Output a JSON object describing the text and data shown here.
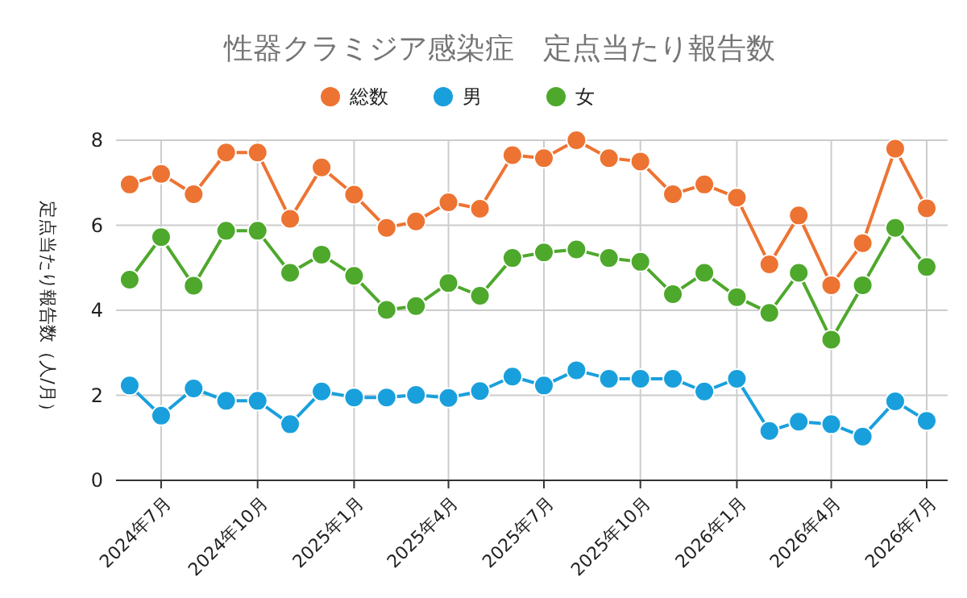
{
  "chart_data": {
    "type": "line",
    "title": "性器クラミジア感染症　定点当たり報告数",
    "ylabel": "定点当たり報告数（人/月）",
    "x": [
      "2024-06",
      "2024-07",
      "2024-08",
      "2024-09",
      "2024-10",
      "2024-11",
      "2024-12",
      "2025-01",
      "2025-02",
      "2025-03",
      "2025-04",
      "2025-05",
      "2025-06",
      "2025-07",
      "2025-08",
      "2025-09",
      "2025-10",
      "2025-11",
      "2025-12",
      "2026-01",
      "2026-02",
      "2026-03",
      "2026-04",
      "2026-05",
      "2026-06",
      "2026-07"
    ],
    "series": [
      {
        "name": "総数",
        "color": "#ed7332",
        "values": [
          6.96,
          7.21,
          6.73,
          7.71,
          7.71,
          6.15,
          7.36,
          6.72,
          5.94,
          6.09,
          6.54,
          6.39,
          7.65,
          7.58,
          8.0,
          7.58,
          7.5,
          6.73,
          6.96,
          6.65,
          5.08,
          6.23,
          4.59,
          5.58,
          7.8,
          6.4
        ]
      },
      {
        "name": "男",
        "color": "#19a0dc",
        "values": [
          2.23,
          1.52,
          2.16,
          1.87,
          1.87,
          1.32,
          2.09,
          1.95,
          1.95,
          2.01,
          1.94,
          2.1,
          2.44,
          2.23,
          2.59,
          2.39,
          2.39,
          2.39,
          2.09,
          2.39,
          1.16,
          1.38,
          1.32,
          1.03,
          1.86,
          1.4
        ]
      },
      {
        "name": "女",
        "color": "#4ea82c",
        "values": [
          4.72,
          5.72,
          4.58,
          5.87,
          5.87,
          4.88,
          5.31,
          4.81,
          4.01,
          4.1,
          4.64,
          4.34,
          5.23,
          5.36,
          5.43,
          5.23,
          5.14,
          4.38,
          4.88,
          4.31,
          3.94,
          4.88,
          3.31,
          4.59,
          5.94,
          5.02
        ]
      }
    ],
    "xlim": [
      "2024-05-19",
      "2026-07-21"
    ],
    "xticks": [
      {
        "value": "2024-07",
        "label": "2024年7月"
      },
      {
        "value": "2024-10",
        "label": "2024年10月"
      },
      {
        "value": "2025-01",
        "label": "2025年1月"
      },
      {
        "value": "2025-04",
        "label": "2025年4月"
      },
      {
        "value": "2025-07",
        "label": "2025年7月"
      },
      {
        "value": "2025-10",
        "label": "2025年10月"
      },
      {
        "value": "2026-01",
        "label": "2026年1月"
      },
      {
        "value": "2026-04",
        "label": "2026年4月"
      },
      {
        "value": "2026-07",
        "label": "2026年7月"
      }
    ],
    "ylim": [
      0,
      8
    ],
    "yticks": [
      0,
      2,
      4,
      6,
      8
    ],
    "grid": true,
    "legend": "top",
    "marker": "circle",
    "line_style": "solid"
  }
}
